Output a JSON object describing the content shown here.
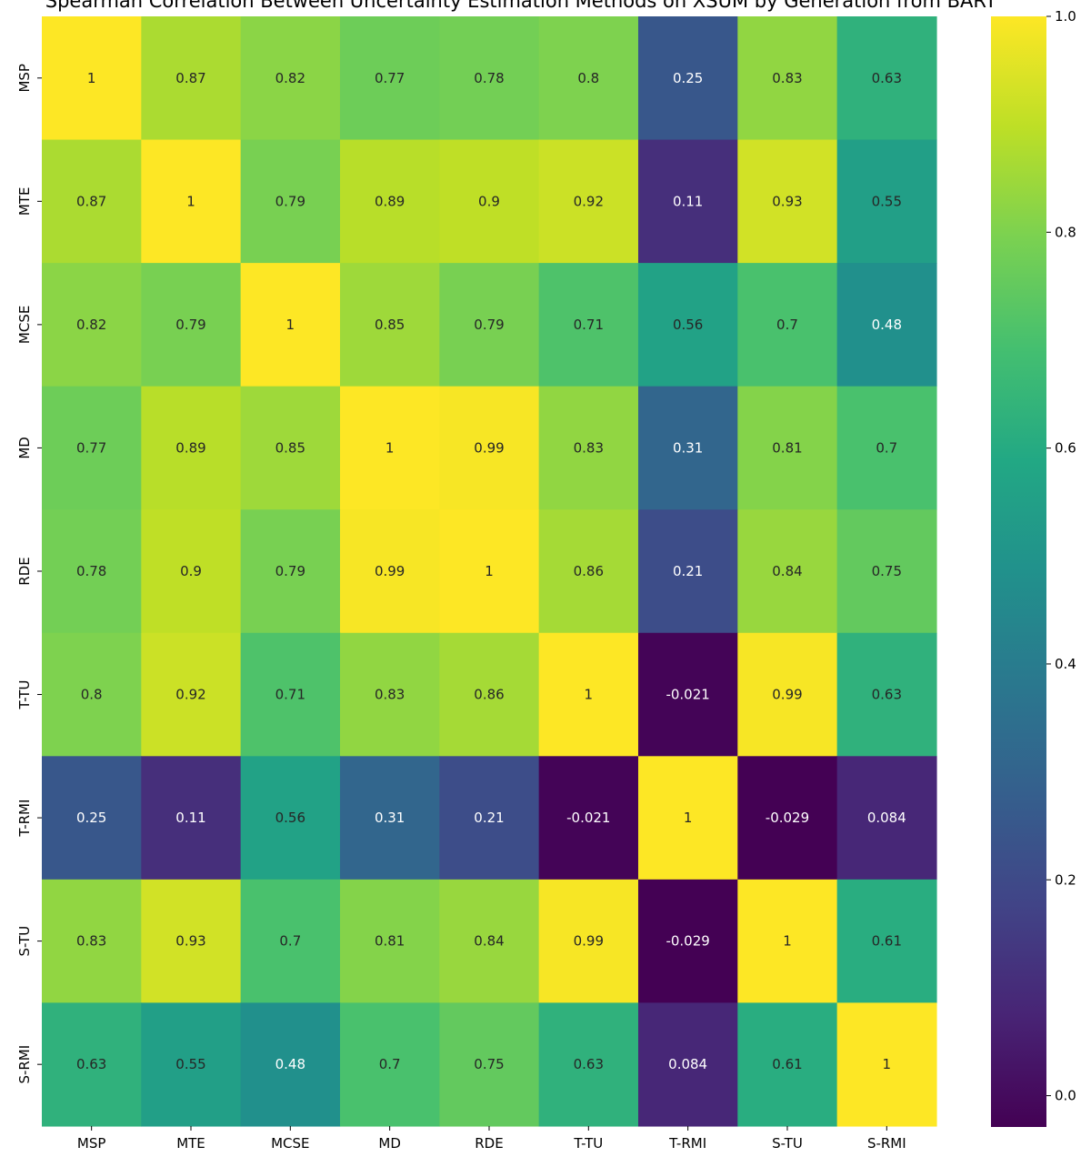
{
  "chart_data": {
    "type": "heatmap",
    "title": "Spearman Correlation Between Uncertainty Estimation Methods on XSUM by Generation from BART",
    "xlabel": "",
    "ylabel": "",
    "row_labels": [
      "MSP",
      "MTE",
      "MCSE",
      "MD",
      "RDE",
      "T-TU",
      "T-RMI",
      "S-TU",
      "S-RMI"
    ],
    "col_labels": [
      "MSP",
      "MTE",
      "MCSE",
      "MD",
      "RDE",
      "T-TU",
      "T-RMI",
      "S-TU",
      "S-RMI"
    ],
    "values": [
      [
        1,
        0.87,
        0.82,
        0.77,
        0.78,
        0.8,
        0.25,
        0.83,
        0.63
      ],
      [
        0.87,
        1,
        0.79,
        0.89,
        0.9,
        0.92,
        0.11,
        0.93,
        0.55
      ],
      [
        0.82,
        0.79,
        1,
        0.85,
        0.79,
        0.71,
        0.56,
        0.7,
        0.48
      ],
      [
        0.77,
        0.89,
        0.85,
        1,
        0.99,
        0.83,
        0.31,
        0.81,
        0.7
      ],
      [
        0.78,
        0.9,
        0.79,
        0.99,
        1,
        0.86,
        0.21,
        0.84,
        0.75
      ],
      [
        0.8,
        0.92,
        0.71,
        0.83,
        0.86,
        1,
        -0.021,
        0.99,
        0.63
      ],
      [
        0.25,
        0.11,
        0.56,
        0.31,
        0.21,
        -0.021,
        1,
        -0.029,
        0.084
      ],
      [
        0.83,
        0.93,
        0.7,
        0.81,
        0.84,
        0.99,
        -0.029,
        1,
        0.61
      ],
      [
        0.63,
        0.55,
        0.48,
        0.7,
        0.75,
        0.63,
        0.084,
        0.61,
        1
      ]
    ],
    "colormap": "viridis",
    "color_range": [
      -0.029,
      1.0
    ],
    "colorbar_ticks": [
      0.0,
      0.2,
      0.4,
      0.6,
      0.8,
      1.0
    ],
    "colorbar_tick_labels": [
      "0.0",
      "0.2",
      "0.4",
      "0.6",
      "0.8",
      "1.0"
    ],
    "annotations": true
  }
}
